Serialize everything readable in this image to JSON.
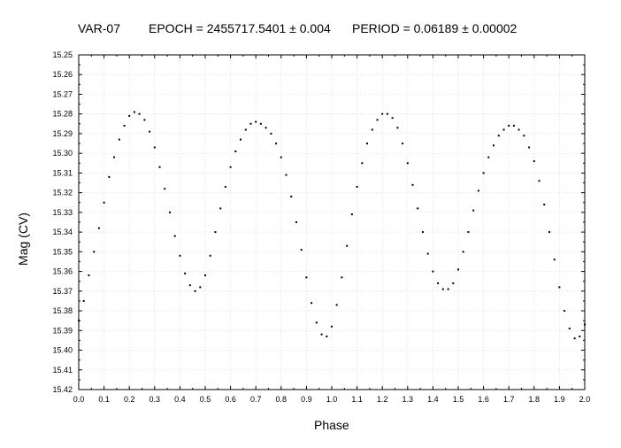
{
  "chart_data": {
    "type": "scatter",
    "title_parts": [
      "VAR-07",
      "EPOCH = 2455717.5401 ± 0.004",
      "PERIOD = 0.06189 ± 0.00002"
    ],
    "xlabel": "Phase",
    "ylabel": "Mag (CV)",
    "xlim": [
      0.0,
      2.0
    ],
    "ylim": [
      15.42,
      15.25
    ],
    "y_inverted": true,
    "grid": true,
    "marker_color": "#000000",
    "x_ticks": [
      "0.0",
      "0.1",
      "0.2",
      "0.3",
      "0.4",
      "0.5",
      "0.6",
      "0.7",
      "0.8",
      "0.9",
      "1.0",
      "1.1",
      "1.2",
      "1.3",
      "1.4",
      "1.5",
      "1.6",
      "1.7",
      "1.8",
      "1.9",
      "2.0"
    ],
    "y_ticks": [
      "15.25",
      "15.26",
      "15.27",
      "15.28",
      "15.29",
      "15.30",
      "15.31",
      "15.32",
      "15.33",
      "15.34",
      "15.35",
      "15.36",
      "15.37",
      "15.38",
      "15.39",
      "15.40",
      "15.41",
      "15.42"
    ],
    "series": [
      {
        "x": [
          0.0,
          0.02,
          0.04,
          0.06,
          0.08,
          0.1,
          0.12,
          0.14,
          0.16,
          0.18,
          0.2,
          0.22,
          0.24,
          0.26,
          0.28,
          0.3,
          0.32,
          0.34,
          0.36,
          0.38,
          0.4,
          0.42,
          0.44,
          0.46,
          0.48,
          0.5,
          0.52,
          0.54,
          0.56,
          0.58,
          0.6,
          0.62,
          0.64,
          0.66,
          0.68,
          0.7,
          0.72,
          0.74,
          0.76,
          0.78,
          0.8,
          0.82,
          0.84,
          0.86,
          0.88,
          0.9,
          0.92,
          0.94,
          0.96,
          0.98,
          1.0,
          1.02,
          1.04,
          1.06,
          1.08,
          1.1,
          1.12,
          1.14,
          1.16,
          1.18,
          1.2,
          1.22,
          1.24,
          1.26,
          1.28,
          1.3,
          1.32,
          1.34,
          1.36,
          1.38,
          1.4,
          1.42,
          1.44,
          1.46,
          1.48,
          1.5,
          1.52,
          1.54,
          1.56,
          1.58,
          1.6,
          1.62,
          1.64,
          1.66,
          1.68,
          1.7,
          1.72,
          1.74,
          1.76,
          1.78,
          1.8,
          1.82,
          1.84,
          1.86,
          1.88,
          1.9,
          1.92,
          1.94,
          1.96,
          1.98,
          2.0
        ],
        "y": [
          15.385,
          15.375,
          15.362,
          15.35,
          15.338,
          15.325,
          15.312,
          15.302,
          15.293,
          15.286,
          15.281,
          15.279,
          15.28,
          15.283,
          15.289,
          15.297,
          15.307,
          15.318,
          15.33,
          15.342,
          15.352,
          15.361,
          15.367,
          15.37,
          15.368,
          15.362,
          15.352,
          15.34,
          15.328,
          15.317,
          15.307,
          15.299,
          15.293,
          15.288,
          15.285,
          15.284,
          15.285,
          15.287,
          15.29,
          15.295,
          15.302,
          15.311,
          15.322,
          15.335,
          15.349,
          15.363,
          15.376,
          15.386,
          15.392,
          15.393,
          15.388,
          15.377,
          15.363,
          15.347,
          15.331,
          15.317,
          15.305,
          15.295,
          15.288,
          15.283,
          15.28,
          15.28,
          15.282,
          15.287,
          15.295,
          15.305,
          15.316,
          15.328,
          15.34,
          15.351,
          15.36,
          15.366,
          15.369,
          15.369,
          15.366,
          15.359,
          15.35,
          15.34,
          15.329,
          15.319,
          15.31,
          15.302,
          15.296,
          15.291,
          15.288,
          15.286,
          15.286,
          15.288,
          15.291,
          15.297,
          15.304,
          15.314,
          15.326,
          15.34,
          15.354,
          15.368,
          15.38,
          15.389,
          15.394,
          15.393,
          15.387
        ]
      }
    ]
  }
}
